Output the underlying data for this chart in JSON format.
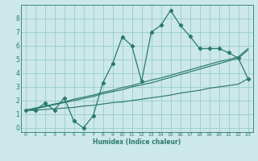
{
  "xlabel": "Humidex (Indice chaleur)",
  "background_color": "#cce8e8",
  "grid_color": "#99cccc",
  "line_color": "#2a7a6a",
  "x_values": [
    0,
    1,
    2,
    3,
    4,
    5,
    6,
    7,
    8,
    9,
    10,
    11,
    12,
    13,
    14,
    15,
    16,
    17,
    18,
    19,
    20,
    21,
    22,
    23
  ],
  "humidex_line": [
    1.3,
    1.3,
    1.8,
    1.3,
    2.2,
    0.5,
    0.0,
    0.9,
    3.3,
    4.7,
    6.65,
    6.0,
    3.4,
    7.0,
    7.5,
    8.6,
    7.5,
    6.7,
    5.8,
    5.8,
    5.8,
    5.5,
    5.1,
    3.6
  ],
  "line_top": [
    1.3,
    1.4,
    1.55,
    1.7,
    1.85,
    2.0,
    2.15,
    2.3,
    2.5,
    2.65,
    2.8,
    3.0,
    3.15,
    3.3,
    3.5,
    3.7,
    3.9,
    4.1,
    4.3,
    4.5,
    4.7,
    4.9,
    5.1,
    5.7
  ],
  "line_mid": [
    1.3,
    1.45,
    1.6,
    1.75,
    1.9,
    2.1,
    2.25,
    2.4,
    2.6,
    2.75,
    2.95,
    3.1,
    3.3,
    3.5,
    3.65,
    3.85,
    4.05,
    4.25,
    4.45,
    4.65,
    4.85,
    5.0,
    5.2,
    5.8
  ],
  "line_bot": [
    1.3,
    1.3,
    1.35,
    1.4,
    1.45,
    1.5,
    1.6,
    1.65,
    1.75,
    1.85,
    1.9,
    2.0,
    2.1,
    2.2,
    2.3,
    2.4,
    2.55,
    2.65,
    2.75,
    2.9,
    3.0,
    3.1,
    3.2,
    3.6
  ],
  "ylim": [
    -0.3,
    9.0
  ],
  "xlim": [
    -0.5,
    23.5
  ],
  "yticks": [
    0,
    1,
    2,
    3,
    4,
    5,
    6,
    7,
    8
  ],
  "xticks": [
    0,
    1,
    2,
    3,
    4,
    5,
    6,
    7,
    8,
    9,
    10,
    11,
    12,
    13,
    14,
    15,
    16,
    17,
    18,
    19,
    20,
    21,
    22,
    23
  ]
}
